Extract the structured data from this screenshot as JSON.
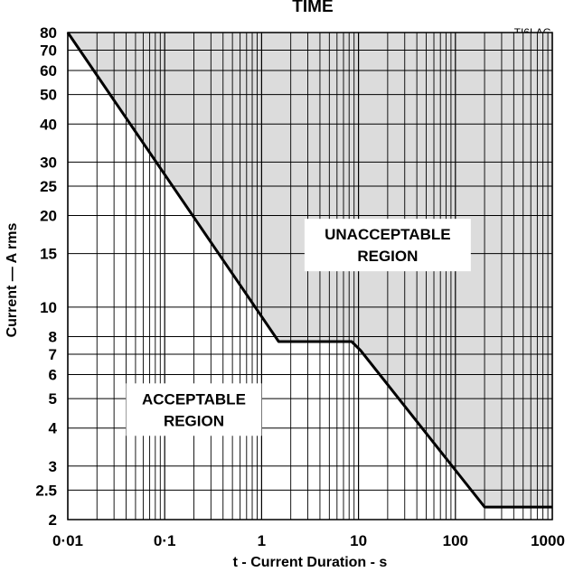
{
  "chart_data": {
    "type": "line",
    "title": "TIME",
    "reference": "TI6LAG",
    "xlabel": "t - Current Duration - s",
    "ylabel": "Current — A rms",
    "x_scale": "log",
    "y_scale": "log",
    "xlim": [
      0.01,
      1000
    ],
    "ylim": [
      2,
      80
    ],
    "grid": true,
    "x_ticks": [
      {
        "value": 0.01,
        "label": "0·01"
      },
      {
        "value": 0.1,
        "label": "0·1"
      },
      {
        "value": 1,
        "label": "1"
      },
      {
        "value": 10,
        "label": "10"
      },
      {
        "value": 100,
        "label": "100"
      },
      {
        "value": 1000,
        "label": "1000"
      }
    ],
    "y_ticks": [
      {
        "value": 80,
        "label": "80"
      },
      {
        "value": 70,
        "label": "70"
      },
      {
        "value": 60,
        "label": "60"
      },
      {
        "value": 50,
        "label": "50"
      },
      {
        "value": 40,
        "label": "40"
      },
      {
        "value": 30,
        "label": "30"
      },
      {
        "value": 25,
        "label": "25"
      },
      {
        "value": 20,
        "label": "20"
      },
      {
        "value": 15,
        "label": "15"
      },
      {
        "value": 10,
        "label": "10"
      },
      {
        "value": 8,
        "label": "8"
      },
      {
        "value": 7,
        "label": "7"
      },
      {
        "value": 6,
        "label": "6"
      },
      {
        "value": 5,
        "label": "5"
      },
      {
        "value": 4,
        "label": "4"
      },
      {
        "value": 3,
        "label": "3"
      },
      {
        "value": 2.5,
        "label": "2.5"
      },
      {
        "value": 2,
        "label": "2"
      }
    ],
    "y_grid_values": [
      2,
      2.5,
      3,
      4,
      5,
      6,
      7,
      8,
      10,
      15,
      20,
      25,
      30,
      40,
      50,
      60,
      70,
      80
    ],
    "series": [
      {
        "x": [
          0.01,
          1.5,
          8.5,
          10.5,
          200,
          1000
        ],
        "y": [
          80,
          7.7,
          7.7,
          7.2,
          2.2,
          2.2
        ]
      }
    ],
    "annotations": [
      {
        "lines": [
          "UNACCEPTABLE",
          "REGION"
        ],
        "x": 20,
        "y": 16
      },
      {
        "lines": [
          "ACCEPTABLE",
          "REGION"
        ],
        "x": 0.2,
        "y": 4.6
      }
    ],
    "colors": {
      "unacceptable_fill": "#dcdcdc",
      "curve": "#000000",
      "grid": "#000000"
    }
  }
}
